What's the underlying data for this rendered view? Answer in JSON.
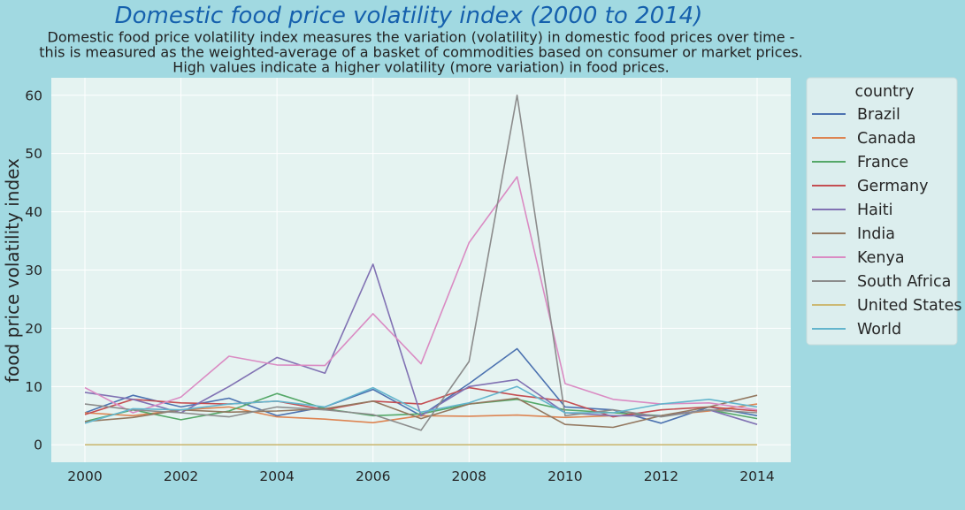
{
  "chart_data": {
    "type": "line",
    "title": "Domestic food price volatility index (2000 to 2014)",
    "subtitle": [
      "Domestic food price volatility index measures the variation (volatility) in domestic food prices over time -",
      "this is measured as the weighted-average of a basket of commodities based on consumer or market prices.",
      "High values indicate a higher volatility (more variation) in food prices."
    ],
    "xlabel": "",
    "ylabel": "food price volatility index",
    "xlim": [
      1999.3,
      2014.7
    ],
    "ylim": [
      -3,
      63
    ],
    "xticks": [
      2000,
      2002,
      2004,
      2006,
      2008,
      2010,
      2012,
      2014
    ],
    "yticks": [
      0,
      10,
      20,
      30,
      40,
      50,
      60
    ],
    "grid": true,
    "legend_title": "country",
    "legend_position": "outside-right",
    "x": [
      2000,
      2001,
      2002,
      2003,
      2004,
      2005,
      2006,
      2007,
      2008,
      2009,
      2010,
      2011,
      2012,
      2013,
      2014
    ],
    "series": [
      {
        "name": "Brazil",
        "color": "#4c72b0",
        "values": [
          5.5,
          8.5,
          6.5,
          8.0,
          5.0,
          6.5,
          9.5,
          5.0,
          10.5,
          16.5,
          6.5,
          6.0,
          3.7,
          6.5,
          5.0
        ]
      },
      {
        "name": "Canada",
        "color": "#dd8452",
        "values": [
          5.5,
          5.0,
          6.0,
          6.5,
          4.8,
          4.4,
          3.8,
          5.0,
          4.9,
          5.1,
          4.7,
          5.0,
          5.0,
          5.8,
          7.0
        ]
      },
      {
        "name": "France",
        "color": "#55a868",
        "values": [
          4.0,
          6.0,
          4.3,
          5.8,
          8.8,
          6.2,
          5.0,
          5.3,
          7.0,
          7.8,
          6.0,
          5.5,
          5.0,
          6.0,
          4.5
        ]
      },
      {
        "name": "Germany",
        "color": "#c44e52",
        "values": [
          5.2,
          7.8,
          7.2,
          7.0,
          7.5,
          6.0,
          7.5,
          7.0,
          9.8,
          8.5,
          7.5,
          4.8,
          6.0,
          6.5,
          5.8
        ]
      },
      {
        "name": "Haiti",
        "color": "#8172b3",
        "values": [
          9.0,
          7.8,
          5.5,
          10.0,
          15.0,
          12.3,
          31.0,
          5.0,
          10.0,
          11.2,
          5.5,
          5.0,
          5.0,
          6.0,
          3.5
        ]
      },
      {
        "name": "India",
        "color": "#937860",
        "values": [
          4.0,
          4.7,
          6.0,
          5.6,
          5.8,
          6.2,
          7.5,
          4.5,
          7.0,
          8.0,
          3.5,
          3.0,
          5.0,
          6.5,
          8.5
        ]
      },
      {
        "name": "Kenya",
        "color": "#da8bc3",
        "values": [
          9.8,
          5.5,
          8.2,
          15.2,
          13.7,
          13.6,
          22.5,
          13.9,
          34.7,
          46.0,
          10.5,
          7.8,
          7.0,
          7.2,
          6.0
        ]
      },
      {
        "name": "South Africa",
        "color": "#8c8c8c",
        "values": [
          7.0,
          6.0,
          5.5,
          4.8,
          6.5,
          6.0,
          5.2,
          2.5,
          14.3,
          60.0,
          5.0,
          6.0,
          4.8,
          6.0,
          5.5
        ]
      },
      {
        "name": "United States",
        "color": "#ccb974",
        "values": [
          0.0,
          0.0,
          0.0,
          0.0,
          0.0,
          0.0,
          0.0,
          0.0,
          0.0,
          0.0,
          0.0,
          0.0,
          0.0,
          0.0,
          0.0
        ]
      },
      {
        "name": "World",
        "color": "#64b5cd",
        "values": [
          3.7,
          6.2,
          6.0,
          7.0,
          7.5,
          6.5,
          9.8,
          5.6,
          7.2,
          10.0,
          5.5,
          5.5,
          7.0,
          7.8,
          6.5
        ]
      }
    ]
  }
}
